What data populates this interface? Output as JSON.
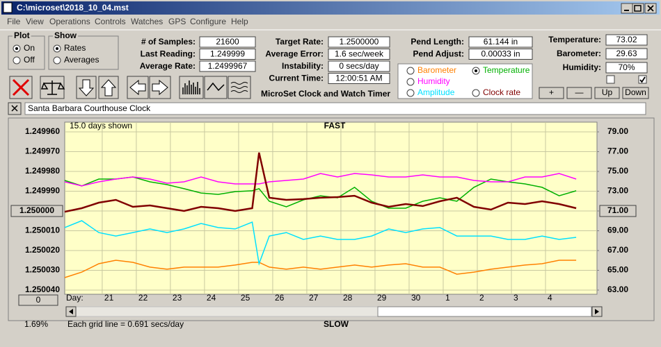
{
  "window": {
    "title": "C:\\microset\\2018_10_04.mst"
  },
  "menu": [
    "File",
    "View",
    "Operations",
    "Controls",
    "Watches",
    "GPS",
    "Configure",
    "Help"
  ],
  "plot_group": {
    "title": "Plot",
    "options": [
      "On",
      "Off"
    ],
    "selected": 0
  },
  "show_group": {
    "title": "Show",
    "options": [
      "Rates",
      "Averages"
    ],
    "selected": 0
  },
  "fields": [
    [
      {
        "label": "# of Samples:",
        "value": "21600"
      },
      {
        "label": "Last Reading:",
        "value": "1.249999"
      },
      {
        "label": "Average Rate:",
        "value": "1.2499967"
      }
    ],
    [
      {
        "label": "Target Rate:",
        "value": "1.2500000"
      },
      {
        "label": "Average Error:",
        "value": "1.6 sec/week"
      },
      {
        "label": "Instability:",
        "value": "0 secs/day"
      },
      {
        "label": "Current Time:",
        "value": "12:00:51 AM"
      }
    ],
    [
      {
        "label": "Pend Length:",
        "value": "61.144 in"
      },
      {
        "label": "Pend Adjust:",
        "value": "0.00033 in"
      }
    ],
    [
      {
        "label": "Temperature:",
        "value": "73.02"
      },
      {
        "label": "Barometer:",
        "value": "29.63"
      },
      {
        "label": "Humidity:",
        "value": "70%"
      }
    ]
  ],
  "checkboxes": [
    false,
    true
  ],
  "buttons": [
    "+",
    "—",
    "Up",
    "Down"
  ],
  "app_title": "MicroSet Clock and Watch Timer",
  "clock_name": "Santa Barbara Courthouse Clock",
  "chart": {
    "type": "line",
    "top_label": "FAST",
    "bottom_label": "SLOW",
    "days_shown": "15.0 days shown",
    "day_label": "Day:",
    "grid_note": "Each grid line = 0.691 secs/day",
    "percent": "1.69%",
    "bottom_button": "0",
    "selected_series": 1,
    "xlim": [
      0,
      15.61
    ],
    "xticks": [
      {
        "value": 1.1,
        "label": "21"
      },
      {
        "value": 2.1,
        "label": "22"
      },
      {
        "value": 3.1,
        "label": "23"
      },
      {
        "value": 4.1,
        "label": "24"
      },
      {
        "value": 5.1,
        "label": "25"
      },
      {
        "value": 6.1,
        "label": "26"
      },
      {
        "value": 7.1,
        "label": "27"
      },
      {
        "value": 8.1,
        "label": "28"
      },
      {
        "value": 9.1,
        "label": "29"
      },
      {
        "value": 10.1,
        "label": "30"
      },
      {
        "value": 11.1,
        "label": "1"
      },
      {
        "value": 12.1,
        "label": "2"
      },
      {
        "value": 13.1,
        "label": "3"
      },
      {
        "value": 14.1,
        "label": "4"
      }
    ],
    "ylim": [
      1.25004,
      1.24996
    ],
    "yticks": [
      {
        "value": 1.24996,
        "label": "1.249960"
      },
      {
        "value": 1.24997,
        "label": "1.249970"
      },
      {
        "value": 1.24998,
        "label": "1.249980"
      },
      {
        "value": 1.24999,
        "label": "1.249990"
      },
      {
        "value": 1.25,
        "label": "1.250000"
      },
      {
        "value": 1.25001,
        "label": "1.250010"
      },
      {
        "value": 1.25002,
        "label": "1.250020"
      },
      {
        "value": 1.25003,
        "label": "1.250030"
      },
      {
        "value": 1.25004,
        "label": "1.250040"
      }
    ],
    "y2lim": [
      63,
      79
    ],
    "y2ticks": [
      {
        "value": 79,
        "label": "79.00"
      },
      {
        "value": 77,
        "label": "77.00"
      },
      {
        "value": 75,
        "label": "75.00"
      },
      {
        "value": 73,
        "label": "73.00"
      },
      {
        "value": 71,
        "label": "71.00"
      },
      {
        "value": 69,
        "label": "69.00"
      },
      {
        "value": 67,
        "label": "67.00"
      },
      {
        "value": 65,
        "label": "65.00"
      },
      {
        "value": 63,
        "label": "63.00"
      }
    ],
    "grid": true,
    "x": [
      0,
      0.5,
      1,
      1.5,
      2,
      2.5,
      3,
      3.5,
      4,
      4.5,
      5,
      5.5,
      5.7,
      6,
      6.5,
      7,
      7.5,
      8,
      8.5,
      9,
      9.5,
      10,
      10.5,
      11,
      11.5,
      12,
      12.5,
      13,
      13.5,
      14,
      14.5,
      15
    ],
    "series": [
      {
        "name": "Barometer",
        "color": "#ff8000",
        "axis": "y2",
        "values": [
          64.26,
          64.82,
          65.67,
          66.02,
          65.81,
          65.32,
          65.11,
          65.32,
          65.32,
          65.32,
          65.53,
          65.81,
          65.81,
          65.32,
          65.11,
          65.32,
          65.11,
          65.32,
          65.53,
          65.32,
          65.53,
          65.67,
          65.32,
          65.32,
          64.61,
          64.82,
          65.11,
          65.32,
          65.53,
          65.67,
          66.02,
          66.02
        ]
      },
      {
        "name": "Temperature",
        "color": "#00b000",
        "axis": "y2",
        "values": [
          74.09,
          73.53,
          74.23,
          74.23,
          74.44,
          73.95,
          73.67,
          73.25,
          72.82,
          72.68,
          72.96,
          73.04,
          73.25,
          71.98,
          71.42,
          72.12,
          72.54,
          72.33,
          73.39,
          71.98,
          71.28,
          71.28,
          71.98,
          72.33,
          71.98,
          73.39,
          74.23,
          73.95,
          73.74,
          73.39,
          72.54,
          73.04
        ]
      },
      {
        "name": "Humidity",
        "color": "#ff00ff",
        "axis": "y2",
        "values": [
          73.95,
          73.53,
          73.95,
          74.23,
          74.44,
          74.23,
          73.81,
          73.95,
          74.44,
          73.95,
          73.74,
          73.74,
          73.74,
          73.95,
          74.09,
          74.23,
          74.79,
          74.44,
          74.79,
          74.65,
          74.44,
          74.44,
          74.65,
          74.44,
          74.44,
          74.09,
          73.95,
          73.95,
          74.44,
          74.44,
          74.79,
          74.23
        ]
      },
      {
        "name": "Amplitude",
        "color": "#00e0ff",
        "axis": "y2",
        "values": [
          69.32,
          70.02,
          68.82,
          68.47,
          68.82,
          69.18,
          68.82,
          69.18,
          69.74,
          69.32,
          69.18,
          69.88,
          65.67,
          68.47,
          68.82,
          68.12,
          68.47,
          68.12,
          68.12,
          68.47,
          69.18,
          68.82,
          69.18,
          69.32,
          68.47,
          68.47,
          68.47,
          68.12,
          68.12,
          68.47,
          68.12,
          68.33
        ]
      },
      {
        "name": "Clock rate",
        "color": "#800000",
        "axis": "y",
        "values": [
          1.2500004,
          1.2499986,
          1.2499958,
          1.2499944,
          1.2499979,
          1.2499972,
          1.2499986,
          1.25,
          1.2499979,
          1.2499986,
          1.25,
          1.2499986,
          1.2499705,
          1.2499933,
          1.2499944,
          1.249994,
          1.2499933,
          1.249993,
          1.2499923,
          1.2499958,
          1.2499979,
          1.2499965,
          1.2499975,
          1.2499951,
          1.2499933,
          1.2499979,
          1.2499993,
          1.2499958,
          1.2499965,
          1.2499951,
          1.2499965,
          1.2499986
        ]
      }
    ]
  }
}
